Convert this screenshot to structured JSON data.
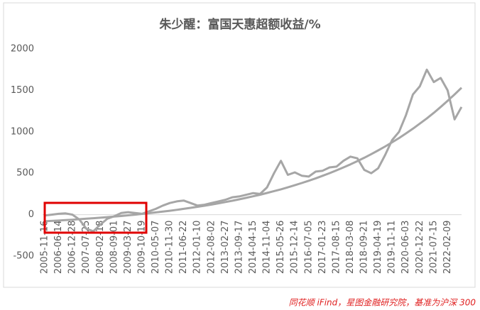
{
  "chart_data": {
    "type": "line",
    "title": "朱少醒：富国天惠超额收益/%",
    "note": "同花顺 iFind，星图金融研究院，基准为沪深 300",
    "categories": [
      "2005-11-16",
      null,
      "2006-06-14",
      null,
      "2006-12-28",
      null,
      "2007-07-25",
      null,
      "2008-02-18",
      null,
      "2008-09-01",
      null,
      "2009-03-27",
      null,
      "2009-10-19",
      null,
      "2010-05-07",
      null,
      "2010-11-30",
      null,
      "2011-06-22",
      null,
      "2012-01-10",
      null,
      "2012-08-02",
      null,
      "2013-02-27",
      null,
      "2013-09-17",
      null,
      "2014-04-15",
      null,
      "2014-11-04",
      null,
      "2015-05-26",
      null,
      "2015-12-14",
      null,
      "2016-07-05",
      null,
      "2017-01-23",
      null,
      "2017-08-15",
      null,
      "2018-03-08",
      null,
      "2018-09-21",
      null,
      "2019-04-19",
      null,
      "2019-11-11",
      null,
      "2020-06-03",
      null,
      "2020-12-22",
      null,
      "2021-07-15",
      null,
      "2022-02-09",
      null,
      null
    ],
    "series": [
      {
        "color": "#a6a6a6",
        "values": [
          -10,
          0,
          10,
          15,
          0,
          -60,
          -170,
          -200,
          -120,
          -50,
          -20,
          20,
          30,
          20,
          10,
          40,
          70,
          110,
          140,
          160,
          170,
          140,
          110,
          120,
          140,
          160,
          180,
          210,
          220,
          240,
          260,
          250,
          330,
          500,
          650,
          480,
          510,
          470,
          460,
          520,
          530,
          570,
          580,
          650,
          700,
          680,
          540,
          500,
          560,
          720,
          900,
          1000,
          1200,
          1450,
          1550,
          1750,
          1600,
          1650,
          1500,
          1150,
          1300
        ]
      },
      {
        "color": "#a6a6a6",
        "values": [
          -80,
          -75,
          -71,
          -66,
          -61,
          -55,
          -49,
          -43,
          -37,
          -30,
          -23,
          -16,
          -8,
          0,
          9,
          18,
          27,
          37,
          47,
          58,
          70,
          82,
          95,
          108,
          122,
          136,
          152,
          168,
          185,
          203,
          222,
          241,
          262,
          284,
          306,
          330,
          355,
          382,
          409,
          438,
          469,
          501,
          535,
          570,
          607,
          646,
          687,
          730,
          776,
          823,
          873,
          925,
          980,
          1038,
          1099,
          1162,
          1229,
          1300,
          1374,
          1451,
          1532
        ]
      }
    ],
    "ylim": [
      -500,
      2000
    ],
    "yticks": [
      -500,
      0,
      500,
      1000,
      1500,
      2000
    ],
    "grid": false
  }
}
